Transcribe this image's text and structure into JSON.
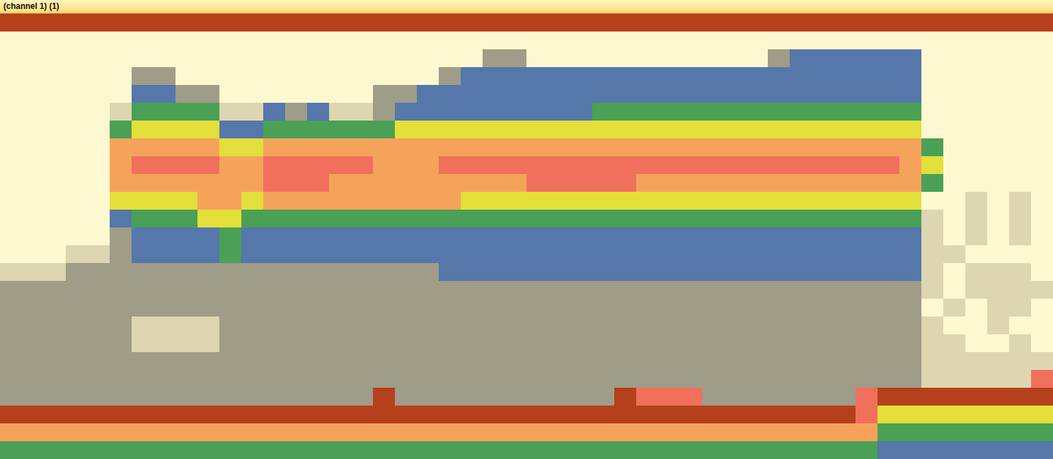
{
  "chart_data": {
    "type": "heatmap",
    "title": "(channel 1) (1)",
    "tick_labels": false,
    "colors": [
      "#fdf8cf",
      "#ddd6b0",
      "#9f9c88",
      "#5577aa",
      "#4aa055",
      "#e3df3a",
      "#f5a35a",
      "#f0705c",
      "#b5401c"
    ],
    "cells": [
      [
        8,
        8,
        8,
        8,
        8,
        8,
        8,
        8,
        8,
        8,
        8,
        8,
        8,
        8,
        8,
        8,
        8,
        8,
        8,
        8,
        8,
        8,
        8,
        8,
        8,
        8,
        8,
        8,
        8,
        8,
        8,
        8,
        8,
        8,
        8,
        8,
        8,
        8,
        8,
        8,
        8,
        8,
        8,
        8,
        8,
        8,
        8,
        8
      ],
      [
        0,
        0,
        0,
        0,
        0,
        0,
        0,
        0,
        0,
        0,
        0,
        0,
        0,
        0,
        0,
        0,
        0,
        0,
        0,
        0,
        0,
        0,
        0,
        0,
        0,
        0,
        0,
        0,
        0,
        0,
        0,
        0,
        0,
        0,
        0,
        0,
        0,
        0,
        0,
        0,
        0,
        0,
        0,
        0,
        0,
        0,
        0,
        0
      ],
      [
        0,
        0,
        0,
        0,
        0,
        0,
        0,
        0,
        0,
        0,
        0,
        0,
        0,
        0,
        0,
        0,
        0,
        0,
        0,
        0,
        0,
        0,
        2,
        2,
        0,
        0,
        0,
        0,
        0,
        0,
        0,
        0,
        0,
        0,
        0,
        2,
        3,
        3,
        3,
        3,
        3,
        3,
        0,
        0,
        0,
        0,
        0,
        0
      ],
      [
        0,
        0,
        0,
        0,
        0,
        0,
        2,
        2,
        0,
        0,
        0,
        0,
        0,
        0,
        0,
        0,
        0,
        0,
        0,
        0,
        2,
        3,
        3,
        3,
        3,
        3,
        3,
        3,
        3,
        3,
        3,
        3,
        3,
        3,
        3,
        3,
        3,
        3,
        3,
        3,
        3,
        3,
        0,
        0,
        0,
        0,
        0,
        0
      ],
      [
        0,
        0,
        0,
        0,
        0,
        0,
        3,
        3,
        2,
        2,
        0,
        0,
        0,
        0,
        0,
        0,
        0,
        2,
        2,
        3,
        3,
        3,
        3,
        3,
        3,
        3,
        3,
        3,
        3,
        3,
        3,
        3,
        3,
        3,
        3,
        3,
        3,
        3,
        3,
        3,
        3,
        3,
        0,
        0,
        0,
        0,
        0,
        0
      ],
      [
        0,
        0,
        0,
        0,
        0,
        1,
        4,
        4,
        4,
        4,
        1,
        1,
        3,
        2,
        3,
        1,
        1,
        2,
        3,
        3,
        3,
        3,
        3,
        3,
        3,
        3,
        3,
        4,
        4,
        4,
        4,
        4,
        4,
        4,
        4,
        4,
        4,
        4,
        4,
        4,
        4,
        4,
        0,
        0,
        0,
        0,
        0,
        0
      ],
      [
        0,
        0,
        0,
        0,
        0,
        4,
        5,
        5,
        5,
        5,
        3,
        3,
        4,
        4,
        4,
        4,
        4,
        4,
        5,
        5,
        5,
        5,
        5,
        5,
        5,
        5,
        5,
        5,
        5,
        5,
        5,
        5,
        5,
        5,
        5,
        5,
        5,
        5,
        5,
        5,
        5,
        5,
        0,
        0,
        0,
        0,
        0,
        0
      ],
      [
        0,
        0,
        0,
        0,
        0,
        6,
        6,
        6,
        6,
        6,
        5,
        5,
        6,
        6,
        6,
        6,
        6,
        6,
        6,
        6,
        6,
        6,
        6,
        6,
        6,
        6,
        6,
        6,
        6,
        6,
        6,
        6,
        6,
        6,
        6,
        6,
        6,
        6,
        6,
        6,
        6,
        6,
        4,
        0,
        0,
        0,
        0,
        0
      ],
      [
        0,
        0,
        0,
        0,
        0,
        6,
        7,
        7,
        7,
        7,
        6,
        6,
        7,
        7,
        7,
        7,
        7,
        6,
        6,
        6,
        7,
        7,
        7,
        7,
        7,
        7,
        7,
        7,
        7,
        7,
        7,
        7,
        7,
        7,
        7,
        7,
        7,
        7,
        7,
        7,
        7,
        6,
        5,
        0,
        0,
        0,
        0,
        0
      ],
      [
        0,
        0,
        0,
        0,
        0,
        6,
        6,
        6,
        6,
        6,
        6,
        6,
        7,
        7,
        7,
        6,
        6,
        6,
        6,
        6,
        6,
        6,
        6,
        6,
        7,
        7,
        7,
        7,
        7,
        6,
        6,
        6,
        6,
        6,
        6,
        6,
        6,
        6,
        6,
        6,
        6,
        6,
        4,
        0,
        0,
        0,
        0,
        0
      ],
      [
        0,
        0,
        0,
        0,
        0,
        5,
        5,
        5,
        5,
        6,
        6,
        5,
        6,
        6,
        6,
        6,
        6,
        6,
        6,
        6,
        6,
        5,
        5,
        5,
        5,
        5,
        5,
        5,
        5,
        5,
        5,
        5,
        5,
        5,
        5,
        5,
        5,
        5,
        5,
        5,
        5,
        5,
        0,
        0,
        1,
        0,
        1,
        0
      ],
      [
        0,
        0,
        0,
        0,
        0,
        3,
        4,
        4,
        4,
        5,
        5,
        4,
        4,
        4,
        4,
        4,
        4,
        4,
        4,
        4,
        4,
        4,
        4,
        4,
        4,
        4,
        4,
        4,
        4,
        4,
        4,
        4,
        4,
        4,
        4,
        4,
        4,
        4,
        4,
        4,
        4,
        4,
        1,
        0,
        1,
        0,
        1,
        0
      ],
      [
        0,
        0,
        0,
        0,
        0,
        2,
        3,
        3,
        3,
        3,
        4,
        3,
        3,
        3,
        3,
        3,
        3,
        3,
        3,
        3,
        3,
        3,
        3,
        3,
        3,
        3,
        3,
        3,
        3,
        3,
        3,
        3,
        3,
        3,
        3,
        3,
        3,
        3,
        3,
        3,
        3,
        3,
        1,
        0,
        1,
        0,
        1,
        0
      ],
      [
        0,
        0,
        0,
        1,
        1,
        2,
        3,
        3,
        3,
        3,
        4,
        3,
        3,
        3,
        3,
        3,
        3,
        3,
        3,
        3,
        3,
        3,
        3,
        3,
        3,
        3,
        3,
        3,
        3,
        3,
        3,
        3,
        3,
        3,
        3,
        3,
        3,
        3,
        3,
        3,
        3,
        3,
        1,
        1,
        0,
        0,
        0,
        0
      ],
      [
        1,
        1,
        1,
        2,
        2,
        2,
        2,
        2,
        2,
        2,
        2,
        2,
        2,
        2,
        2,
        2,
        2,
        2,
        2,
        2,
        3,
        3,
        3,
        3,
        3,
        3,
        3,
        3,
        3,
        3,
        3,
        3,
        3,
        3,
        3,
        3,
        3,
        3,
        3,
        3,
        3,
        3,
        1,
        0,
        1,
        1,
        1,
        0
      ],
      [
        2,
        2,
        2,
        2,
        2,
        2,
        2,
        2,
        2,
        2,
        2,
        2,
        2,
        2,
        2,
        2,
        2,
        2,
        2,
        2,
        2,
        2,
        2,
        2,
        2,
        2,
        2,
        2,
        2,
        2,
        2,
        2,
        2,
        2,
        2,
        2,
        2,
        2,
        2,
        2,
        2,
        2,
        1,
        0,
        1,
        1,
        1,
        1
      ],
      [
        2,
        2,
        2,
        2,
        2,
        2,
        2,
        2,
        2,
        2,
        2,
        2,
        2,
        2,
        2,
        2,
        2,
        2,
        2,
        2,
        2,
        2,
        2,
        2,
        2,
        2,
        2,
        2,
        2,
        2,
        2,
        2,
        2,
        2,
        2,
        2,
        2,
        2,
        2,
        2,
        2,
        2,
        0,
        1,
        0,
        1,
        1,
        0
      ],
      [
        2,
        2,
        2,
        2,
        2,
        2,
        1,
        1,
        1,
        1,
        2,
        2,
        2,
        2,
        2,
        2,
        2,
        2,
        2,
        2,
        2,
        2,
        2,
        2,
        2,
        2,
        2,
        2,
        2,
        2,
        2,
        2,
        2,
        2,
        2,
        2,
        2,
        2,
        2,
        2,
        2,
        2,
        1,
        0,
        0,
        1,
        0,
        0
      ],
      [
        2,
        2,
        2,
        2,
        2,
        2,
        1,
        1,
        1,
        1,
        2,
        2,
        2,
        2,
        2,
        2,
        2,
        2,
        2,
        2,
        2,
        2,
        2,
        2,
        2,
        2,
        2,
        2,
        2,
        2,
        2,
        2,
        2,
        2,
        2,
        2,
        2,
        2,
        2,
        2,
        2,
        2,
        1,
        1,
        0,
        0,
        1,
        0
      ],
      [
        2,
        2,
        2,
        2,
        2,
        2,
        2,
        2,
        2,
        2,
        2,
        2,
        2,
        2,
        2,
        2,
        2,
        2,
        2,
        2,
        2,
        2,
        2,
        2,
        2,
        2,
        2,
        2,
        2,
        2,
        2,
        2,
        2,
        2,
        2,
        2,
        2,
        2,
        2,
        2,
        2,
        2,
        1,
        1,
        1,
        1,
        1,
        1
      ],
      [
        2,
        2,
        2,
        2,
        2,
        2,
        2,
        2,
        2,
        2,
        2,
        2,
        2,
        2,
        2,
        2,
        2,
        2,
        2,
        2,
        2,
        2,
        2,
        2,
        2,
        2,
        2,
        2,
        2,
        2,
        2,
        2,
        2,
        2,
        2,
        2,
        2,
        2,
        2,
        2,
        2,
        2,
        1,
        1,
        1,
        1,
        1,
        7
      ],
      [
        2,
        2,
        2,
        2,
        2,
        2,
        2,
        2,
        2,
        2,
        2,
        2,
        2,
        2,
        2,
        2,
        2,
        8,
        2,
        2,
        2,
        2,
        2,
        2,
        2,
        2,
        2,
        2,
        8,
        7,
        7,
        7,
        2,
        2,
        2,
        2,
        2,
        2,
        2,
        7,
        8,
        8,
        8,
        8,
        8,
        8,
        8,
        8
      ],
      [
        8,
        8,
        8,
        8,
        8,
        8,
        8,
        8,
        8,
        8,
        8,
        8,
        8,
        8,
        8,
        8,
        8,
        8,
        8,
        8,
        8,
        8,
        8,
        8,
        8,
        8,
        8,
        8,
        8,
        8,
        8,
        8,
        8,
        8,
        8,
        8,
        8,
        8,
        8,
        7,
        5,
        5,
        5,
        5,
        5,
        5,
        5,
        5
      ],
      [
        6,
        6,
        6,
        6,
        6,
        6,
        6,
        6,
        6,
        6,
        6,
        6,
        6,
        6,
        6,
        6,
        6,
        6,
        6,
        6,
        6,
        6,
        6,
        6,
        6,
        6,
        6,
        6,
        6,
        6,
        6,
        6,
        6,
        6,
        6,
        6,
        6,
        6,
        6,
        6,
        4,
        4,
        4,
        4,
        4,
        4,
        4,
        4
      ],
      [
        4,
        4,
        4,
        4,
        4,
        4,
        4,
        4,
        4,
        4,
        4,
        4,
        4,
        4,
        4,
        4,
        4,
        4,
        4,
        4,
        4,
        4,
        4,
        4,
        4,
        4,
        4,
        4,
        4,
        4,
        4,
        4,
        4,
        4,
        4,
        4,
        4,
        4,
        4,
        4,
        3,
        3,
        3,
        3,
        3,
        3,
        3,
        3
      ]
    ]
  }
}
